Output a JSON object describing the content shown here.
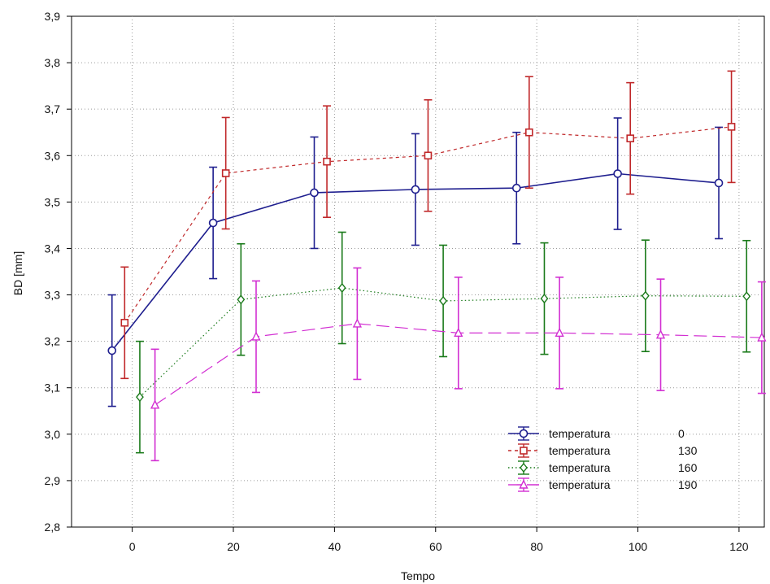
{
  "chart_data": {
    "type": "line",
    "xlabel": "Tempo",
    "ylabel": "BD [mm]",
    "xlim": [
      -12,
      125
    ],
    "ylim": [
      2.8,
      3.9
    ],
    "x_ticks": [
      "0",
      "20",
      "40",
      "60",
      "80",
      "100",
      "120"
    ],
    "y_ticks": [
      "2,8",
      "2,9",
      "3,0",
      "3,1",
      "3,2",
      "3,3",
      "3,4",
      "3,5",
      "3,6",
      "3,7",
      "3,8",
      "3,9"
    ],
    "grid": true,
    "legend_position": "bottom-right",
    "series": [
      {
        "name": "temperatura",
        "level": "0",
        "color": "#1f1f8f",
        "marker": "circle",
        "line": "solid",
        "x": [
          -4,
          16,
          36,
          56,
          76,
          96,
          116
        ],
        "y": [
          3.18,
          3.455,
          3.52,
          3.527,
          3.53,
          3.561,
          3.541
        ],
        "err": [
          0.12,
          0.12,
          0.12,
          0.12,
          0.12,
          0.12,
          0.12
        ]
      },
      {
        "name": "temperatura",
        "level": "130",
        "color": "#c0282a",
        "marker": "square",
        "line": "dashed",
        "x": [
          -1.5,
          18.5,
          38.5,
          58.5,
          78.5,
          98.5,
          118.5
        ],
        "y": [
          3.24,
          3.562,
          3.587,
          3.6,
          3.65,
          3.637,
          3.662
        ],
        "err": [
          0.12,
          0.12,
          0.12,
          0.12,
          0.12,
          0.12,
          0.12
        ]
      },
      {
        "name": "temperatura",
        "level": "160",
        "color": "#1a7a1a",
        "marker": "diamond",
        "line": "dotted",
        "x": [
          1.5,
          21.5,
          41.5,
          61.5,
          81.5,
          101.5,
          121.5
        ],
        "y": [
          3.08,
          3.29,
          3.315,
          3.287,
          3.292,
          3.298,
          3.297
        ],
        "err": [
          0.12,
          0.12,
          0.12,
          0.12,
          0.12,
          0.12,
          0.12
        ]
      },
      {
        "name": "temperatura",
        "level": "190",
        "color": "#d22fd2",
        "marker": "triangle",
        "line": "longdash",
        "x": [
          4.5,
          24.5,
          44.5,
          64.5,
          84.5,
          104.5,
          124.5
        ],
        "y": [
          3.063,
          3.21,
          3.238,
          3.218,
          3.218,
          3.214,
          3.208
        ],
        "err": [
          0.12,
          0.12,
          0.12,
          0.12,
          0.12,
          0.12,
          0.12
        ]
      }
    ]
  }
}
